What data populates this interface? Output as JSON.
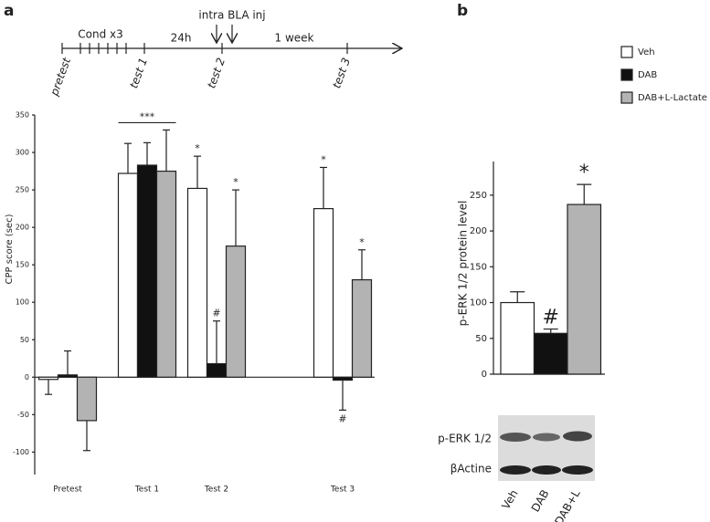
{
  "panels": {
    "a": "a",
    "b": "b"
  },
  "timeline": {
    "conditioning": "Cond x3",
    "delay": "24h",
    "injection": "intra BLA inj",
    "week": "1 week",
    "pretest": "pretest",
    "test1": "test 1",
    "test2": "test 2",
    "test3": "test 3"
  },
  "blot": {
    "row1": "p-ERK 1/2",
    "row2": "βActine"
  },
  "chart_data": [
    {
      "type": "bar",
      "y_label": "CPP score (sec)",
      "categories": [
        "Pretest",
        "Test 1",
        "Test 2",
        "Test 3"
      ],
      "group_annotations": [
        null,
        "***",
        null,
        null
      ],
      "series": [
        {
          "name": "Veh",
          "color": "#ffffff",
          "values": [
            -3,
            272,
            252,
            225
          ],
          "errors": [
            20,
            40,
            43,
            55
          ],
          "significance": [
            null,
            null,
            "*",
            "*"
          ]
        },
        {
          "name": "DAB",
          "color": "#111111",
          "values": [
            3,
            283,
            18,
            -4
          ],
          "errors": [
            32,
            30,
            57,
            40
          ],
          "significance": [
            null,
            null,
            "#",
            "#"
          ]
        },
        {
          "name": "DAB+L-Lactate",
          "color": "#b3b3b3",
          "values": [
            -58,
            275,
            175,
            130
          ],
          "errors": [
            40,
            55,
            75,
            40
          ],
          "significance": [
            null,
            null,
            "*",
            "*"
          ]
        }
      ],
      "ylim": [
        -130,
        350
      ],
      "yticks": [
        -100,
        -50,
        0,
        50,
        100,
        150,
        200,
        250,
        300,
        350
      ],
      "legend": "top-right"
    },
    {
      "type": "bar",
      "y_label": "p-ERK 1/2 protein level",
      "categories": [
        "Veh",
        "DAB",
        "DAB+L"
      ],
      "values": [
        100,
        57,
        237
      ],
      "errors": [
        15,
        6,
        28
      ],
      "colors": [
        "#ffffff",
        "#111111",
        "#b3b3b3"
      ],
      "significance": [
        null,
        "#",
        "*"
      ],
      "ylim": [
        0,
        297
      ],
      "yticks": [
        0,
        50,
        100,
        150,
        200,
        250
      ]
    }
  ]
}
